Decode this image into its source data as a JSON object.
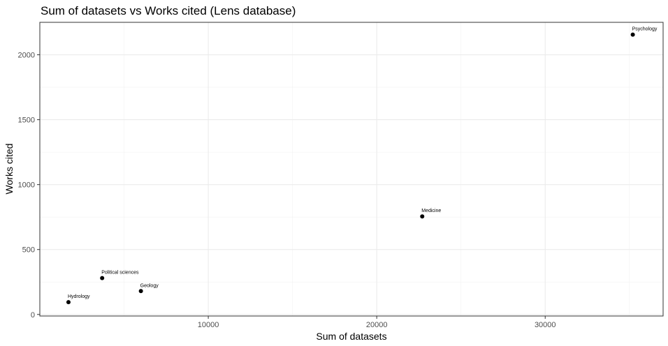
{
  "chart_data": {
    "type": "scatter",
    "title": "Sum of datasets vs Works cited (Lens database)",
    "xlabel": "Sum of datasets",
    "ylabel": "Works cited",
    "xlim": [
      0,
      37000
    ],
    "ylim": [
      -12,
      2250
    ],
    "x_ticks": [
      10000,
      20000,
      30000
    ],
    "y_ticks": [
      0,
      500,
      1000,
      1500,
      2000
    ],
    "x_minor": [
      5000,
      15000,
      25000,
      35000
    ],
    "y_minor": [
      250,
      750,
      1250,
      1750
    ],
    "grid": true,
    "legend": "none",
    "point_color": "#000000",
    "points": [
      {
        "label": "Hydrology",
        "x": 1700,
        "y": 95
      },
      {
        "label": "Political sciences",
        "x": 3700,
        "y": 280
      },
      {
        "label": "Geology",
        "x": 6000,
        "y": 180
      },
      {
        "label": "Medicine",
        "x": 22700,
        "y": 755
      },
      {
        "label": "Psychology",
        "x": 35200,
        "y": 2155
      }
    ]
  }
}
